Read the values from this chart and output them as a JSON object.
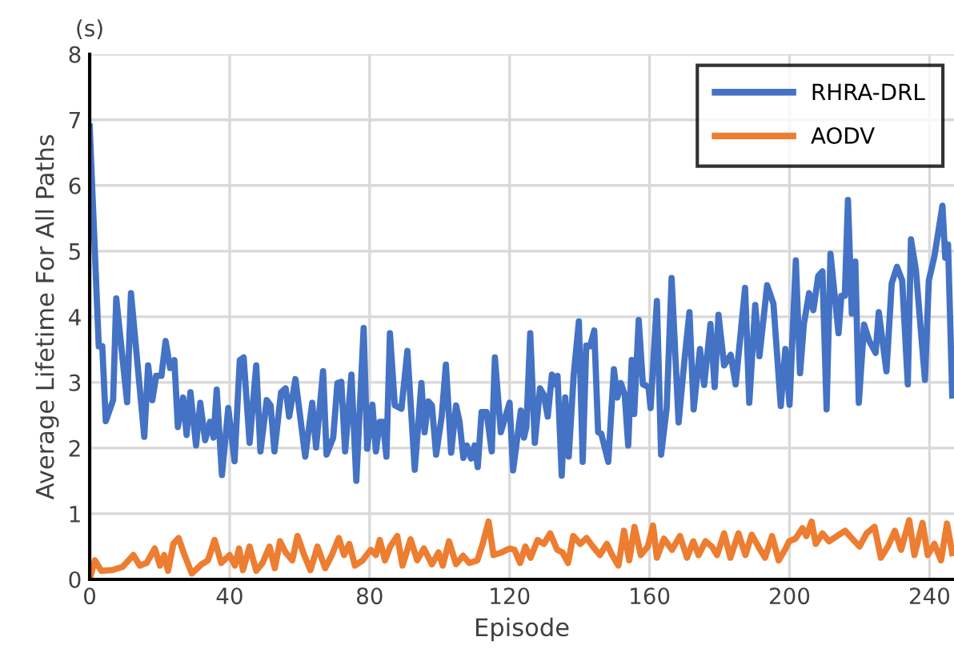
{
  "chart_data": {
    "type": "line",
    "xlabel": "Episode",
    "ylabel": "Average Lifetime For All Paths",
    "annotations": [
      "(s)"
    ],
    "xlim": [
      0,
      247
    ],
    "xticks": [
      0,
      40,
      80,
      120,
      160,
      200,
      240
    ],
    "ylim": [
      0,
      8
    ],
    "yticks": [
      0,
      1,
      2,
      3,
      4,
      5,
      6,
      7,
      8
    ],
    "grid": true,
    "legend": "top right",
    "marker": "none",
    "line_style": "solid",
    "series": [
      {
        "name": "RHRA-DRL",
        "color": "#4472c4",
        "x": [
          0,
          2.6,
          3.6,
          4.6,
          6.7,
          7.6,
          10.7,
          11.8,
          15.6,
          16.7,
          17.9,
          19,
          20.5,
          21.7,
          23,
          24.2,
          25.2,
          26.7,
          27.7,
          28.8,
          30.4,
          31.6,
          33,
          34.4,
          35.4,
          36.3,
          37.8,
          39.6,
          41.4,
          42.9,
          44,
          45.7,
          47.6,
          48.8,
          50.6,
          51.7,
          52.8,
          54.7,
          56,
          57,
          58.8,
          61.6,
          63.6,
          64.7,
          66.7,
          67.7,
          69.6,
          70.8,
          71.9,
          73,
          74.8,
          76.2,
          78.3,
          79.3,
          80.8,
          81.8,
          82.9,
          83.8,
          84.8,
          85.8,
          87.2,
          89.1,
          90.8,
          92.9,
          94.8,
          95.7,
          96.8,
          97.8,
          99,
          100.6,
          101.8,
          103.3,
          104.7,
          105.7,
          106.8,
          107.8,
          109,
          110,
          110.9,
          112,
          113.4,
          114.9,
          115.8,
          117.5,
          118.6,
          120,
          121,
          123.2,
          124.1,
          124.8,
          125.9,
          127.2,
          128.7,
          129.8,
          130.9,
          132.1,
          132.8,
          133.7,
          134.9,
          135.9,
          136.9,
          138.3,
          139.8,
          140.9,
          141.9,
          143,
          144.2,
          145.3,
          146.2,
          148.2,
          149.8,
          150.8,
          151.8,
          152.9,
          153.9,
          154.9,
          155.6,
          156.9,
          158.1,
          159.7,
          160.3,
          162.1,
          163.3,
          164.9,
          166.3,
          168.3,
          169.9,
          171.4,
          172.6,
          174.4,
          175.6,
          177.4,
          178.6,
          179.7,
          181.3,
          183.2,
          184.6,
          187.3,
          188.5,
          190.2,
          191.4,
          193.6,
          195.4,
          197.5,
          198.8,
          200,
          201.8,
          203,
          204.1,
          205.6,
          206.8,
          208.2,
          209.4,
          210.6,
          211.7,
          214,
          214.8,
          215.8,
          216.7,
          217.8,
          218.8,
          219.8,
          221.3,
          222.8,
          224.6,
          225.5,
          227.7,
          229.2,
          230.7,
          232.2,
          233.8,
          234.7,
          236.1,
          237.1,
          238.7,
          239.8,
          241.4,
          243.7,
          244.5,
          245.3,
          246.5
        ],
        "values": [
          6.9,
          3.55,
          3.55,
          2.41,
          2.73,
          4.28,
          2.7,
          4.36,
          2.17,
          3.26,
          2.73,
          3.1,
          3.1,
          3.63,
          3.22,
          3.34,
          2.32,
          2.77,
          2.2,
          2.85,
          2.04,
          2.69,
          2.12,
          2.4,
          2.16,
          2.89,
          1.59,
          2.61,
          1.8,
          3.34,
          3.38,
          2.08,
          3.26,
          1.95,
          2.73,
          2.65,
          1.95,
          2.85,
          2.91,
          2.48,
          3.05,
          1.87,
          2.69,
          2.01,
          3.17,
          1.9,
          2.16,
          2.99,
          3.01,
          1.95,
          3.12,
          1.5,
          3.83,
          1.99,
          2.66,
          1.95,
          2.4,
          2.4,
          1.87,
          3.75,
          2.65,
          2.6,
          3.48,
          1.67,
          2.99,
          2.24,
          2.71,
          2.65,
          1.9,
          2.48,
          3.27,
          1.93,
          2.65,
          2.4,
          1.85,
          2.04,
          1.84,
          2.04,
          1.71,
          2.55,
          2.55,
          1.95,
          3.38,
          2.24,
          2.44,
          2.69,
          1.66,
          2.57,
          2.16,
          2.32,
          3.75,
          2.08,
          2.91,
          2.81,
          2.48,
          3.12,
          2.97,
          3.1,
          1.58,
          2.77,
          1.87,
          3.1,
          3.93,
          1.79,
          3.56,
          3.55,
          3.79,
          2.24,
          2.22,
          1.79,
          3.2,
          2.77,
          2.99,
          2.81,
          2.04,
          3.34,
          2.52,
          3.95,
          2.97,
          2.93,
          2.61,
          4.24,
          1.9,
          2.61,
          4.59,
          2.39,
          3.3,
          4.07,
          2.59,
          3.51,
          2.96,
          3.89,
          2.93,
          4.03,
          3.26,
          3.42,
          2.97,
          4.44,
          2.69,
          4.18,
          3.4,
          4.48,
          4.2,
          2.64,
          3.51,
          2.66,
          4.86,
          3.14,
          3.89,
          4.36,
          4.1,
          4.62,
          4.69,
          2.59,
          4.96,
          3.75,
          4.32,
          4.32,
          5.78,
          4.05,
          4.84,
          2.69,
          3.88,
          3.63,
          3.45,
          4.07,
          3.17,
          4.51,
          4.76,
          4.55,
          2.97,
          5.18,
          4.72,
          4.07,
          3.04,
          4.55,
          4.92,
          5.69,
          4.9,
          5.1,
          2.8
        ]
      },
      {
        "name": "AODV",
        "color": "#ed7d31",
        "x": [
          0.3,
          1.5,
          3.3,
          6.4,
          9.4,
          12.5,
          14.3,
          16.3,
          18.6,
          20.1,
          21.3,
          22.4,
          23.9,
          25.4,
          27.1,
          29.2,
          32,
          33.8,
          35.7,
          37.6,
          40,
          41.5,
          42.7,
          43.8,
          45.7,
          47.6,
          49.4,
          51.4,
          52.9,
          54.4,
          56,
          57.9,
          59.4,
          61.3,
          63.1,
          65.1,
          67.3,
          69.2,
          71.2,
          72.7,
          74.2,
          75.8,
          78,
          80.3,
          81.8,
          82.9,
          84.4,
          85.9,
          87.9,
          89.4,
          91.7,
          93.6,
          95.5,
          97.8,
          99.7,
          100.9,
          102.7,
          104.7,
          106.7,
          108.5,
          110.8,
          112.3,
          114,
          115.4,
          117.7,
          120,
          121.4,
          123,
          124.5,
          126,
          128,
          129.8,
          131.6,
          133.6,
          135.1,
          136.7,
          138.2,
          140.2,
          142,
          143.8,
          145.8,
          147.8,
          149.3,
          151.1,
          152.7,
          154.2,
          155.7,
          157.5,
          159.5,
          161,
          162.1,
          164.1,
          166.4,
          168.7,
          170.7,
          172.5,
          174,
          176,
          177.8,
          179.3,
          181.3,
          183.1,
          185.4,
          187.4,
          189.2,
          191.1,
          193,
          195,
          196.9,
          198.7,
          199.9,
          201.7,
          203.7,
          204.8,
          206.3,
          207.5,
          209.4,
          211.3,
          213.6,
          215.9,
          217.9,
          220,
          222,
          224.3,
          226.1,
          228.1,
          230.1,
          231.9,
          234.2,
          235.7,
          238,
          239.5,
          241.4,
          243.3,
          245,
          246.5
        ],
        "values": [
          0.06,
          0.29,
          0.13,
          0.14,
          0.19,
          0.37,
          0.21,
          0.25,
          0.47,
          0.21,
          0.37,
          0.13,
          0.54,
          0.63,
          0.37,
          0.09,
          0.23,
          0.29,
          0.6,
          0.25,
          0.37,
          0.21,
          0.47,
          0.14,
          0.5,
          0.13,
          0.25,
          0.5,
          0.17,
          0.58,
          0.41,
          0.29,
          0.66,
          0.37,
          0.14,
          0.5,
          0.17,
          0.37,
          0.63,
          0.37,
          0.54,
          0.21,
          0.29,
          0.45,
          0.37,
          0.6,
          0.29,
          0.5,
          0.66,
          0.21,
          0.61,
          0.29,
          0.47,
          0.23,
          0.41,
          0.21,
          0.58,
          0.23,
          0.36,
          0.25,
          0.29,
          0.54,
          0.88,
          0.37,
          0.41,
          0.47,
          0.45,
          0.25,
          0.5,
          0.33,
          0.6,
          0.54,
          0.7,
          0.45,
          0.41,
          0.25,
          0.66,
          0.54,
          0.63,
          0.5,
          0.37,
          0.54,
          0.37,
          0.21,
          0.74,
          0.29,
          0.8,
          0.37,
          0.5,
          0.82,
          0.33,
          0.62,
          0.45,
          0.66,
          0.33,
          0.58,
          0.37,
          0.58,
          0.5,
          0.37,
          0.7,
          0.33,
          0.7,
          0.37,
          0.68,
          0.5,
          0.33,
          0.66,
          0.29,
          0.45,
          0.58,
          0.62,
          0.78,
          0.66,
          0.88,
          0.54,
          0.7,
          0.58,
          0.66,
          0.74,
          0.62,
          0.5,
          0.7,
          0.8,
          0.33,
          0.5,
          0.74,
          0.45,
          0.9,
          0.37,
          0.86,
          0.37,
          0.54,
          0.29,
          0.85,
          0.4
        ]
      }
    ]
  }
}
